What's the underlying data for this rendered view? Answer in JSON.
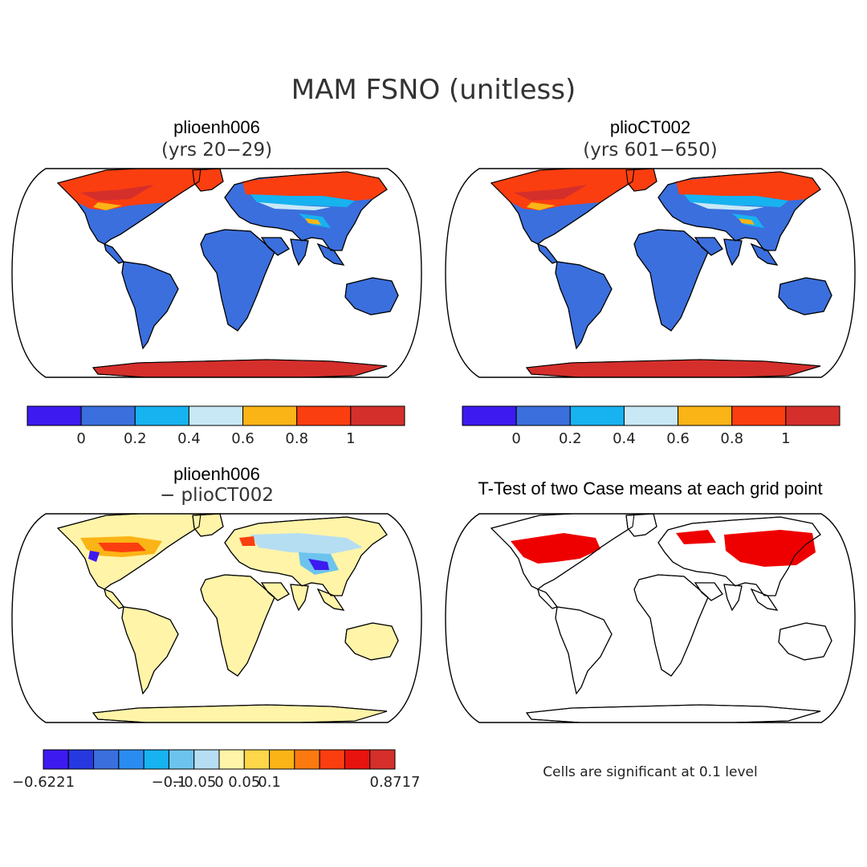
{
  "title": "MAM FSNO (unitless)",
  "panels": {
    "top_left": {
      "title": "plioenh006",
      "subtitle": "(yrs 20−29)"
    },
    "top_right": {
      "title": "plioCT002",
      "subtitle": "(yrs 601−650)"
    },
    "bottom_left": {
      "title": "plioenh006",
      "subtitle": "− plioCT002"
    },
    "bottom_right": {
      "title": "T-Test of two Case means at each grid point",
      "subtitle": ""
    }
  },
  "colorbar_abs": {
    "colors": [
      "#3d1af0",
      "#3a6fdd",
      "#17b2f0",
      "#c8e8f6",
      "#fbb416",
      "#fb3e10",
      "#d52f2c"
    ],
    "labels": [
      "0",
      "0.2",
      "0.4",
      "0.6",
      "0.8",
      "1"
    ]
  },
  "colorbar_diff": {
    "colors": [
      "#3d1af0",
      "#2638e0",
      "#3a6fdd",
      "#2a8cf0",
      "#17b2f0",
      "#6cc4ee",
      "#b6def3",
      "#fff4a8",
      "#fdd64a",
      "#fbb416",
      "#fa7a10",
      "#fb3e10",
      "#e8120e",
      "#d52f2c"
    ],
    "labels": [
      "−0.6221",
      "−0.1",
      "−0.05",
      "0",
      "0.05",
      "0.1",
      "0.8717"
    ]
  },
  "significance_note": "Cells are significant at 0.1 level",
  "significance_color": "#ee0000",
  "map_colors": {
    "land_low": "#3a6fdd",
    "snow_high": "#fb3e10",
    "snow_max": "#d52f2c",
    "snow_mid": "#fbb416",
    "snow_light": "#c8e8f6",
    "snow_cyan": "#17b2f0",
    "diff_zero": "#fff4a8",
    "diff_pos": "#fb3e10",
    "diff_neg": "#3d1af0"
  }
}
